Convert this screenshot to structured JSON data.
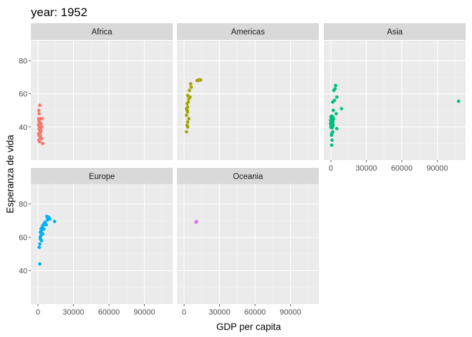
{
  "title": "year: 1952",
  "chart_data": {
    "type": "scatter",
    "title": "year: 1952",
    "xlabel": "GDP per capita",
    "ylabel": "Esperanza de vida",
    "xlim": [
      -6000,
      114000
    ],
    "ylim": [
      20,
      92
    ],
    "x_ticks": [
      0,
      30000,
      60000,
      90000
    ],
    "x_tick_labels": [
      "0",
      "30000",
      "60000",
      "90000"
    ],
    "y_ticks": [
      40,
      60,
      80
    ],
    "y_tick_labels": [
      "40",
      "60",
      "80"
    ],
    "grid": true,
    "legend": "none",
    "facets": [
      {
        "name": "Africa",
        "color": "#F8766D",
        "points": [
          [
            1500,
            53
          ],
          [
            700,
            50
          ],
          [
            1000,
            48
          ],
          [
            2000,
            45
          ],
          [
            3500,
            45
          ],
          [
            800,
            44
          ],
          [
            1200,
            43
          ],
          [
            2500,
            42
          ],
          [
            500,
            41
          ],
          [
            1800,
            40
          ],
          [
            900,
            39
          ],
          [
            1300,
            38
          ],
          [
            2200,
            37
          ],
          [
            600,
            36
          ],
          [
            1000,
            35
          ],
          [
            1600,
            34
          ],
          [
            3000,
            33
          ],
          [
            700,
            32
          ],
          [
            1400,
            31
          ],
          [
            4000,
            30
          ],
          [
            2500,
            38
          ],
          [
            1100,
            42
          ],
          [
            600,
            45
          ],
          [
            1900,
            35
          ],
          [
            3200,
            40
          ]
        ]
      },
      {
        "name": "Americas",
        "color": "#A3A500",
        "points": [
          [
            13000,
            68.5
          ],
          [
            12000,
            68
          ],
          [
            14000,
            68.3
          ],
          [
            11000,
            68
          ],
          [
            5500,
            66
          ],
          [
            6000,
            64
          ],
          [
            4500,
            62
          ],
          [
            3000,
            59
          ],
          [
            5000,
            58
          ],
          [
            4000,
            57
          ],
          [
            3500,
            55
          ],
          [
            2500,
            54
          ],
          [
            3000,
            52
          ],
          [
            2000,
            51
          ],
          [
            2500,
            50
          ],
          [
            3000,
            49
          ],
          [
            2000,
            47
          ],
          [
            4000,
            45
          ],
          [
            3000,
            43
          ],
          [
            2500,
            41
          ],
          [
            3000,
            40
          ],
          [
            2000,
            37
          ]
        ]
      },
      {
        "name": "Asia",
        "color": "#00BF7D",
        "points": [
          [
            108000,
            55.5
          ],
          [
            4000,
            65
          ],
          [
            3500,
            63
          ],
          [
            2500,
            62
          ],
          [
            5000,
            58
          ],
          [
            3000,
            56
          ],
          [
            1500,
            55
          ],
          [
            9000,
            51
          ],
          [
            2000,
            50
          ],
          [
            4500,
            48
          ],
          [
            800,
            46
          ],
          [
            1500,
            45
          ],
          [
            600,
            44
          ],
          [
            1000,
            43
          ],
          [
            500,
            42
          ],
          [
            1200,
            41
          ],
          [
            700,
            40
          ],
          [
            5000,
            39
          ],
          [
            1500,
            37
          ],
          [
            800,
            36
          ],
          [
            600,
            35
          ],
          [
            1000,
            32
          ],
          [
            700,
            29
          ]
        ]
      },
      {
        "name": "Europe",
        "color": "#00B0F6",
        "points": [
          [
            7500,
            72.5
          ],
          [
            9000,
            72
          ],
          [
            10000,
            71
          ],
          [
            8000,
            70.5
          ],
          [
            14000,
            69.5
          ],
          [
            6000,
            69
          ],
          [
            5000,
            68
          ],
          [
            7000,
            67.5
          ],
          [
            4000,
            67
          ],
          [
            3500,
            66
          ],
          [
            2500,
            65
          ],
          [
            5000,
            65
          ],
          [
            3000,
            64
          ],
          [
            2000,
            63
          ],
          [
            4000,
            62
          ],
          [
            2500,
            61
          ],
          [
            1800,
            60
          ],
          [
            2000,
            59
          ],
          [
            3000,
            58
          ],
          [
            1500,
            56
          ],
          [
            1000,
            54
          ],
          [
            1500,
            44
          ]
        ]
      },
      {
        "name": "Oceania",
        "color": "#E76BF3",
        "points": [
          [
            10000,
            69.1
          ],
          [
            10500,
            69.4
          ]
        ]
      }
    ]
  }
}
